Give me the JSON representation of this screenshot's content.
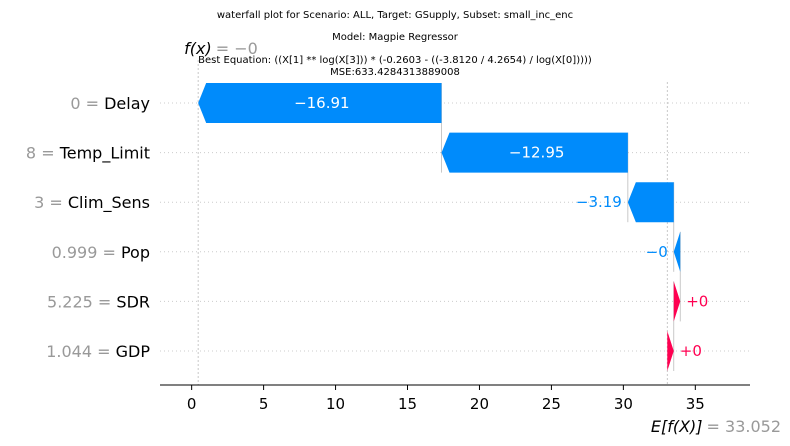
{
  "chart_data": {
    "type": "waterfall",
    "title_lines": [
      "waterfall plot for Scenario: ALL, Target: GSupply, Subset: small_inc_enc",
      "Model: Magpie Regressor",
      "Best Equation: ((X[1] ** log(X[3])) * (-0.2603 - ((-3.8120 / 4.2654) / log(X[0]))))",
      "MSE:633.4284313889008"
    ],
    "fx_label": "f(x)",
    "fx_value_text": "= −0",
    "base_label": "E[f(X)]",
    "base_value_text": "= 33.052",
    "base_value": 33.052,
    "xlim": [
      -2.2,
      38.8
    ],
    "xticks": [
      0,
      5,
      10,
      15,
      20,
      25,
      30,
      35
    ],
    "features": [
      {
        "value_text": "0",
        "name": "Delay",
        "contribution": -16.91,
        "label": "−16.91"
      },
      {
        "value_text": "8",
        "name": "Temp_Limit",
        "contribution": -12.95,
        "label": "−12.95"
      },
      {
        "value_text": "3",
        "name": "Clim_Sens",
        "contribution": -3.19,
        "label": "−3.19"
      },
      {
        "value_text": "0.999",
        "name": "Pop",
        "contribution": -0.45,
        "label": "−0"
      },
      {
        "value_text": "5.225",
        "name": "SDR",
        "contribution": 0.45,
        "label": "+0"
      },
      {
        "value_text": "1.044",
        "name": "GDP",
        "contribution": 0.45,
        "label": "+0"
      }
    ],
    "colors": {
      "negative": "#008bfb",
      "positive": "#ff0051",
      "muted": "#999999"
    }
  }
}
